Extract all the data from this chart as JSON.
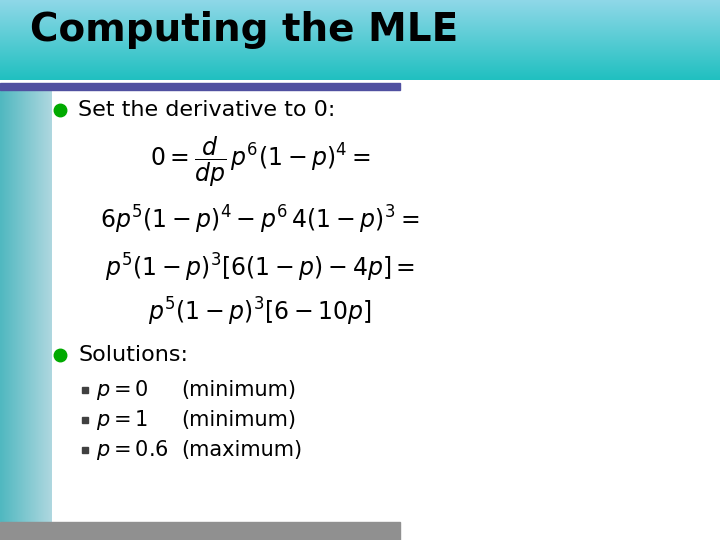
{
  "title": "Computing the MLE",
  "title_color": "#000000",
  "slide_bg": "#FFFFFF",
  "accent_bar_color": "#5050A0",
  "bullet_color": "#00AA00",
  "bullet1_text": "Set the derivative to 0:",
  "bullet2_text": "Solutions:",
  "eq1": "$0 = \\dfrac{d}{dp}\\, p^6(1-p)^4 =$",
  "eq2": "$6p^5(1-p)^4 - p^6\\,4(1-p)^3 =$",
  "eq3": "$p^5(1-p)^3[6(1-p) - 4p] =$",
  "eq4": "$p^5(1-p)^3[6 - 10p]$",
  "sol1": "$p = 0$",
  "sol1_note": "(minimum)",
  "sol2": "$p = 1$",
  "sol2_note": "(minimum)",
  "sol3": "$p = 0.6$",
  "sol3_note": "(maximum)",
  "title_fontsize": 28,
  "bullet_fontsize": 16,
  "eq_fontsize": 17,
  "sol_fontsize": 15
}
